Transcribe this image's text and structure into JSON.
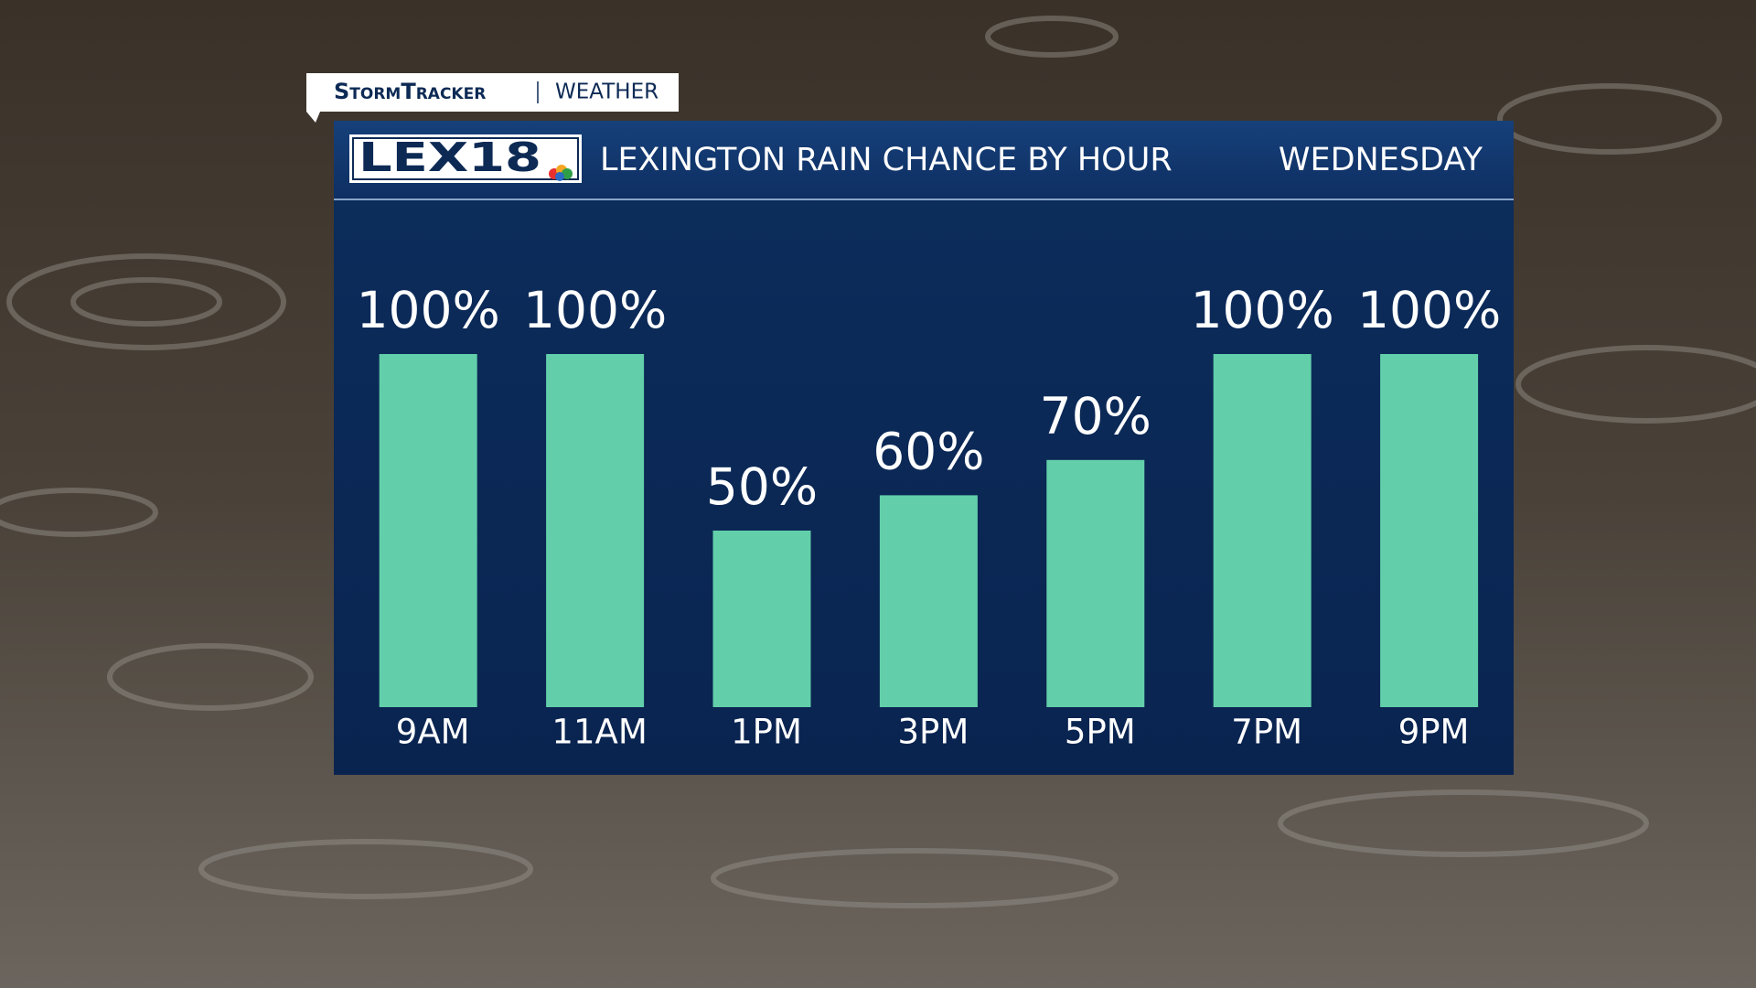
{
  "brand": "StormTracker",
  "section": "WEATHER",
  "logo": "LEX18",
  "chart_data": {
    "type": "bar",
    "title": "LEXINGTON RAIN CHANCE BY HOUR",
    "subtitle": "WEDNESDAY",
    "categories": [
      "9AM",
      "11AM",
      "1PM",
      "3PM",
      "5PM",
      "7PM",
      "9PM"
    ],
    "values": [
      100,
      100,
      50,
      60,
      70,
      100,
      100
    ],
    "value_labels": [
      "100%",
      "100%",
      "50%",
      "60%",
      "70%",
      "100%",
      "100%"
    ],
    "color": "#62cfaa"
  }
}
